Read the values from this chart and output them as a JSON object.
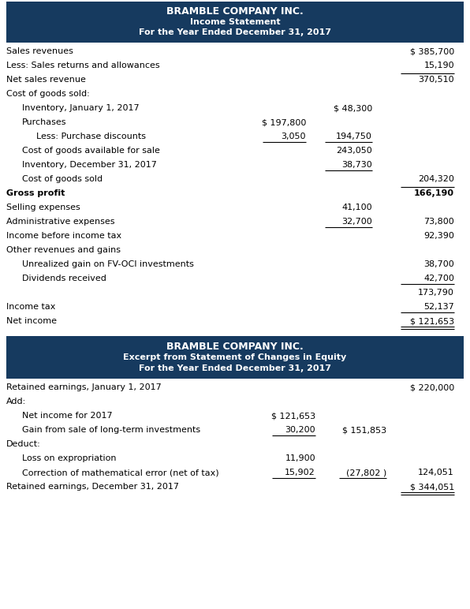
{
  "header_bg": "#163a5f",
  "header_text_color": "#ffffff",
  "body_bg": "#ffffff",
  "fig_width": 5.96,
  "fig_height": 7.72,
  "dpi": 100,
  "section1_title": [
    "BRAMBLE COMPANY INC.",
    "Income Statement",
    "For the Year Ended December 31, 2017"
  ],
  "section2_title": [
    "BRAMBLE COMPANY INC.",
    "Excerpt from Statement of Changes in Equity",
    "For the Year Ended December 31, 2017"
  ],
  "rows1": [
    {
      "label": "Sales revenues",
      "c1": "",
      "c2": "",
      "c3": "$ 385,700",
      "indent": 0,
      "bold": false,
      "line_above_c3": false,
      "ul_c1": false,
      "ul_c2": false,
      "ul_c3": false,
      "dbl_c3": false
    },
    {
      "label": "Less: Sales returns and allowances",
      "c1": "",
      "c2": "",
      "c3": "15,190",
      "indent": 0,
      "bold": false,
      "line_above_c3": false,
      "ul_c1": false,
      "ul_c2": false,
      "ul_c3": false,
      "dbl_c3": false
    },
    {
      "label": "Net sales revenue",
      "c1": "",
      "c2": "",
      "c3": "370,510",
      "indent": 0,
      "bold": false,
      "line_above_c3": true,
      "ul_c1": false,
      "ul_c2": false,
      "ul_c3": false,
      "dbl_c3": false
    },
    {
      "label": "Cost of goods sold:",
      "c1": "",
      "c2": "",
      "c3": "",
      "indent": 0,
      "bold": false,
      "line_above_c3": false,
      "ul_c1": false,
      "ul_c2": false,
      "ul_c3": false,
      "dbl_c3": false
    },
    {
      "label": "Inventory, January 1, 2017",
      "c1": "",
      "c2": "$ 48,300",
      "c3": "",
      "indent": 1,
      "bold": false,
      "line_above_c3": false,
      "ul_c1": false,
      "ul_c2": false,
      "ul_c3": false,
      "dbl_c3": false
    },
    {
      "label": "Purchases",
      "c1": "$ 197,800",
      "c2": "",
      "c3": "",
      "indent": 1,
      "bold": false,
      "line_above_c3": false,
      "ul_c1": false,
      "ul_c2": false,
      "ul_c3": false,
      "dbl_c3": false
    },
    {
      "label": "Less: Purchase discounts",
      "c1": "3,050",
      "c2": "194,750",
      "c3": "",
      "indent": 2,
      "bold": false,
      "line_above_c3": false,
      "ul_c1": true,
      "ul_c2": true,
      "ul_c3": false,
      "dbl_c3": false
    },
    {
      "label": "Cost of goods available for sale",
      "c1": "",
      "c2": "243,050",
      "c3": "",
      "indent": 1,
      "bold": false,
      "line_above_c3": false,
      "ul_c1": false,
      "ul_c2": false,
      "ul_c3": false,
      "dbl_c3": false
    },
    {
      "label": "Inventory, December 31, 2017",
      "c1": "",
      "c2": "38,730",
      "c3": "",
      "indent": 1,
      "bold": false,
      "line_above_c3": false,
      "ul_c1": false,
      "ul_c2": true,
      "ul_c3": false,
      "dbl_c3": false
    },
    {
      "label": "Cost of goods sold",
      "c1": "",
      "c2": "",
      "c3": "204,320",
      "indent": 1,
      "bold": false,
      "line_above_c3": false,
      "ul_c1": false,
      "ul_c2": false,
      "ul_c3": false,
      "dbl_c3": false
    },
    {
      "label": "Gross profit",
      "c1": "",
      "c2": "",
      "c3": "166,190",
      "indent": 0,
      "bold": true,
      "line_above_c3": true,
      "ul_c1": false,
      "ul_c2": false,
      "ul_c3": false,
      "dbl_c3": false
    },
    {
      "label": "Selling expenses",
      "c1": "",
      "c2": "41,100",
      "c3": "",
      "indent": 0,
      "bold": false,
      "line_above_c3": false,
      "ul_c1": false,
      "ul_c2": false,
      "ul_c3": false,
      "dbl_c3": false
    },
    {
      "label": "Administrative expenses",
      "c1": "",
      "c2": "32,700",
      "c3": "73,800",
      "indent": 0,
      "bold": false,
      "line_above_c3": false,
      "ul_c1": false,
      "ul_c2": true,
      "ul_c3": false,
      "dbl_c3": false
    },
    {
      "label": "Income before income tax",
      "c1": "",
      "c2": "",
      "c3": "92,390",
      "indent": 0,
      "bold": false,
      "line_above_c3": false,
      "ul_c1": false,
      "ul_c2": false,
      "ul_c3": false,
      "dbl_c3": false
    },
    {
      "label": "Other revenues and gains",
      "c1": "",
      "c2": "",
      "c3": "",
      "indent": 0,
      "bold": false,
      "line_above_c3": false,
      "ul_c1": false,
      "ul_c2": false,
      "ul_c3": false,
      "dbl_c3": false
    },
    {
      "label": "Unrealized gain on FV-OCI investments",
      "c1": "",
      "c2": "",
      "c3": "38,700",
      "indent": 1,
      "bold": false,
      "line_above_c3": false,
      "ul_c1": false,
      "ul_c2": false,
      "ul_c3": false,
      "dbl_c3": false
    },
    {
      "label": "Dividends received",
      "c1": "",
      "c2": "",
      "c3": "42,700",
      "indent": 1,
      "bold": false,
      "line_above_c3": false,
      "ul_c1": false,
      "ul_c2": false,
      "ul_c3": true,
      "dbl_c3": false
    },
    {
      "label": "",
      "c1": "",
      "c2": "",
      "c3": "173,790",
      "indent": 0,
      "bold": false,
      "line_above_c3": false,
      "ul_c1": false,
      "ul_c2": false,
      "ul_c3": false,
      "dbl_c3": false
    },
    {
      "label": "Income tax",
      "c1": "",
      "c2": "",
      "c3": "52,137",
      "indent": 0,
      "bold": false,
      "line_above_c3": false,
      "ul_c1": false,
      "ul_c2": false,
      "ul_c3": true,
      "dbl_c3": false
    },
    {
      "label": "Net income",
      "c1": "",
      "c2": "",
      "c3": "$ 121,653",
      "indent": 0,
      "bold": false,
      "line_above_c3": false,
      "ul_c1": false,
      "ul_c2": false,
      "ul_c3": false,
      "dbl_c3": true
    }
  ],
  "rows2": [
    {
      "label": "Retained earnings, January 1, 2017",
      "c1": "",
      "c2": "",
      "c3": "$ 220,000",
      "indent": 0,
      "ul_c1": false,
      "ul_c2": false,
      "ul_c3": false,
      "dbl_c3": false
    },
    {
      "label": "Add:",
      "c1": "",
      "c2": "",
      "c3": "",
      "indent": 0,
      "ul_c1": false,
      "ul_c2": false,
      "ul_c3": false,
      "dbl_c3": false
    },
    {
      "label": "Net income for 2017",
      "c1": "$ 121,653",
      "c2": "",
      "c3": "",
      "indent": 1,
      "ul_c1": false,
      "ul_c2": false,
      "ul_c3": false,
      "dbl_c3": false
    },
    {
      "label": "Gain from sale of long-term investments",
      "c1": "30,200",
      "c2": "$ 151,853",
      "c3": "",
      "indent": 1,
      "ul_c1": true,
      "ul_c2": false,
      "ul_c3": false,
      "dbl_c3": false
    },
    {
      "label": "Deduct:",
      "c1": "",
      "c2": "",
      "c3": "",
      "indent": 0,
      "ul_c1": false,
      "ul_c2": false,
      "ul_c3": false,
      "dbl_c3": false
    },
    {
      "label": "Loss on expropriation",
      "c1": "11,900",
      "c2": "",
      "c3": "",
      "indent": 1,
      "ul_c1": false,
      "ul_c2": false,
      "ul_c3": false,
      "dbl_c3": false
    },
    {
      "label": "Correction of mathematical error (net of tax)",
      "c1": "15,902",
      "c2": "(27,802 )",
      "c3": "124,051",
      "indent": 1,
      "ul_c1": true,
      "ul_c2": true,
      "ul_c3": false,
      "dbl_c3": false
    },
    {
      "label": "Retained earnings, December 31, 2017",
      "c1": "",
      "c2": "",
      "c3": "$ 344,051",
      "indent": 0,
      "ul_c1": false,
      "ul_c2": false,
      "ul_c3": false,
      "dbl_c3": true
    }
  ]
}
